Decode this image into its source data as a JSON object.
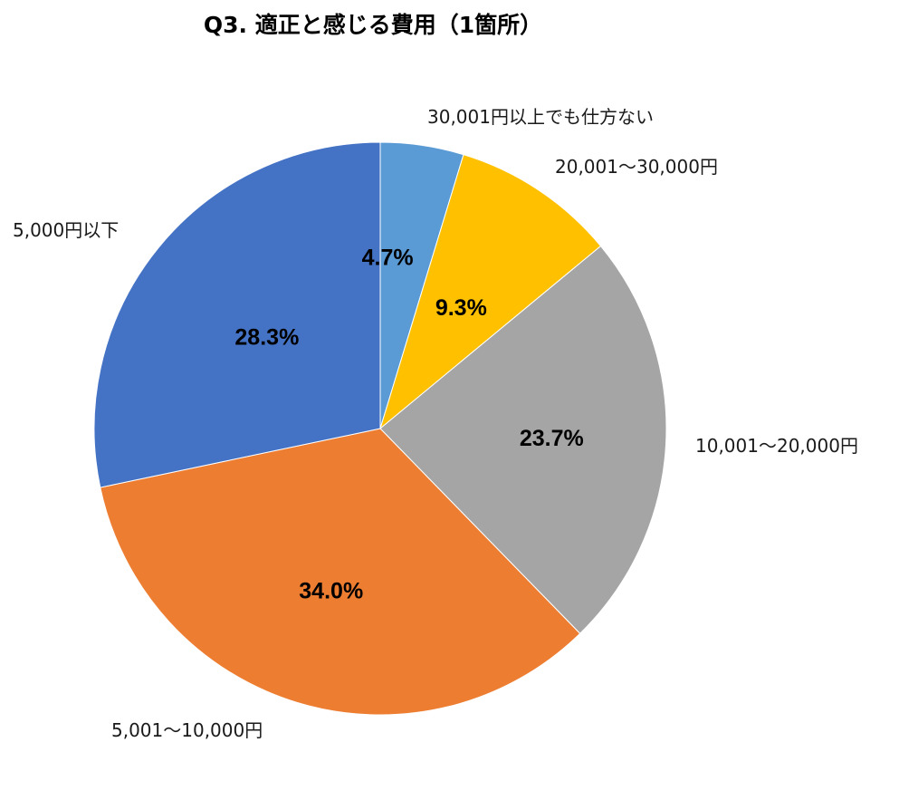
{
  "chart_data": {
    "type": "pie",
    "title": "Q3. 適正と感じる費用（1箇所）",
    "slices": [
      {
        "label": "30,001円以上でも仕方ない",
        "value": 4.7,
        "pct_label": "4.7%",
        "color": "#5B9BD5"
      },
      {
        "label": "20,001～30,000円",
        "value": 9.3,
        "pct_label": "9.3%",
        "color": "#FFC000"
      },
      {
        "label": "10,001～20,000円",
        "value": 23.7,
        "pct_label": "23.7%",
        "color": "#A5A5A5"
      },
      {
        "label": "5,001～10,000円",
        "value": 34.0,
        "pct_label": "34.0%",
        "color": "#ED7D31"
      },
      {
        "label": "5,000円以下",
        "value": 28.3,
        "pct_label": "28.3%",
        "color": "#4472C4"
      }
    ],
    "start_angle": "12 o'clock",
    "direction": "clockwise",
    "legend": "none"
  }
}
